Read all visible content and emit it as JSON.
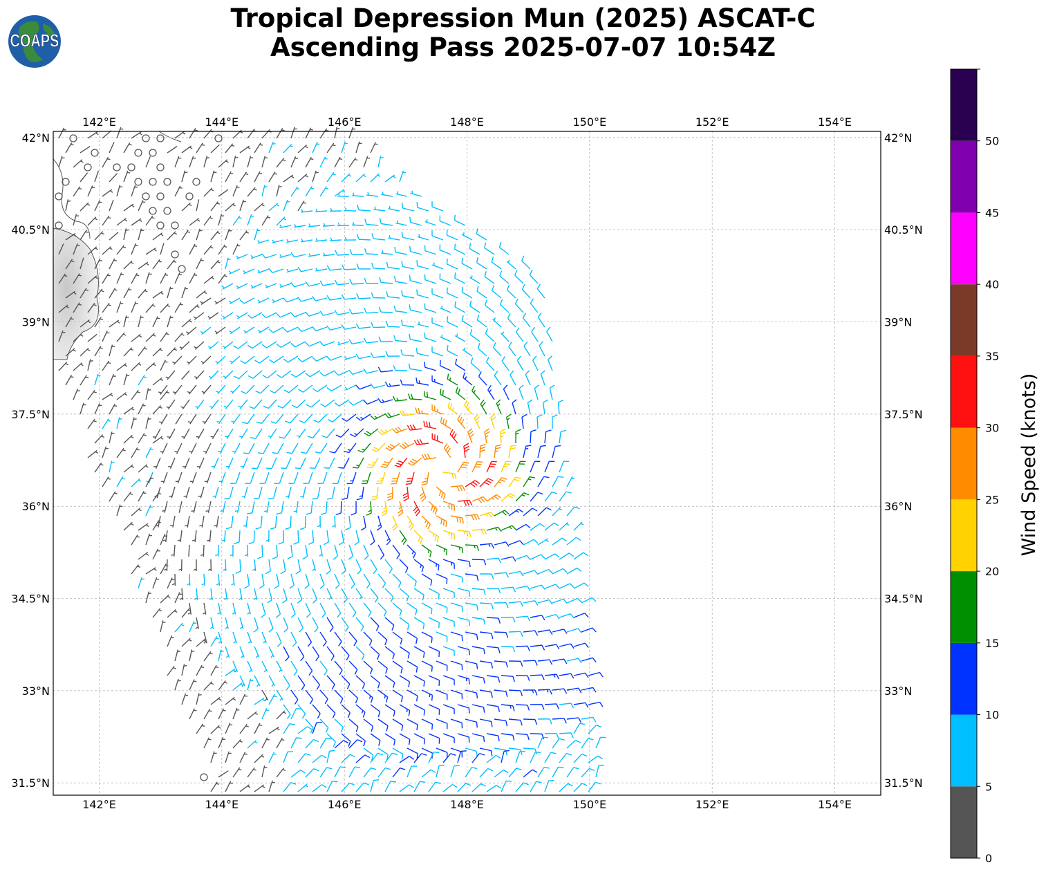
{
  "title": {
    "line1": "Tropical Depression Mun (2025) ASCAT-C",
    "line2": "Ascending Pass 2025-07-07 10:54Z"
  },
  "logo": {
    "text": "COAPS",
    "icon": "globe-icon"
  },
  "map": {
    "lon_range": [
      141.25,
      154.75
    ],
    "lat_range": [
      31.3,
      42.1
    ],
    "lon_ticks": [
      "142°E",
      "144°E",
      "146°E",
      "148°E",
      "150°E",
      "152°E",
      "154°E"
    ],
    "lat_ticks": [
      "42°N",
      "40.5°N",
      "39°N",
      "37.5°N",
      "36°N",
      "34.5°N",
      "33°N",
      "31.5°N"
    ],
    "grid": true,
    "storm_center": {
      "lon": 147.6,
      "lat": 36.6
    },
    "swath_corners": [
      [
        141.3,
        42.05
      ],
      [
        146.0,
        42.05
      ],
      [
        149.3,
        39.8
      ],
      [
        150.2,
        31.3
      ],
      [
        143.8,
        31.3
      ],
      [
        141.3,
        38.2
      ]
    ]
  },
  "colorbar": {
    "label": "Wind Speed (knots)",
    "ticks": [
      "0",
      "5",
      "10",
      "15",
      "20",
      "25",
      "30",
      "35",
      "40",
      "45",
      "50"
    ],
    "bins": [
      {
        "min": 0,
        "max": 5,
        "color": "#555555"
      },
      {
        "min": 5,
        "max": 10,
        "color": "#00bfff"
      },
      {
        "min": 10,
        "max": 15,
        "color": "#0033ff"
      },
      {
        "min": 15,
        "max": 20,
        "color": "#008f00"
      },
      {
        "min": 20,
        "max": 25,
        "color": "#ffd200"
      },
      {
        "min": 25,
        "max": 30,
        "color": "#ff8c00"
      },
      {
        "min": 30,
        "max": 35,
        "color": "#ff1010"
      },
      {
        "min": 35,
        "max": 40,
        "color": "#7b3a28"
      },
      {
        "min": 40,
        "max": 45,
        "color": "#ff00ff"
      },
      {
        "min": 45,
        "max": 50,
        "color": "#8000b0"
      },
      {
        "min": 50,
        "max": 55,
        "color": "#2a0050"
      }
    ]
  }
}
